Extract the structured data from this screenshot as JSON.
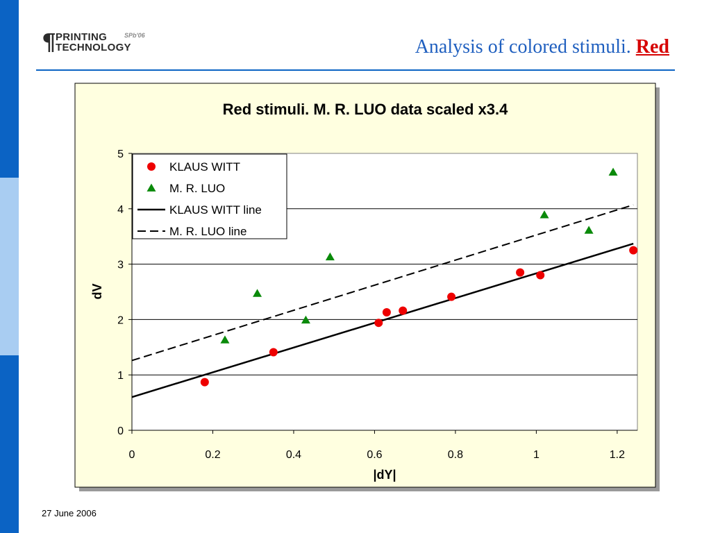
{
  "header": {
    "logo": {
      "line1": "PRINTING",
      "line2": "TECHNOLOGY",
      "tag": "SPb'06"
    },
    "title_main": "Analysis of colored stimuli.",
    "title_highlight": "Red"
  },
  "footer": {
    "date": "27 June 2006"
  },
  "colors": {
    "side_bar": "#0b63c4",
    "side_bar_light": "#a9cdf2",
    "title": "#1f5fbf",
    "title_highlight": "#d60000",
    "chart_bg": "#ffffe0",
    "klaus_witt": "#ee0000",
    "luo": "#0a8a0a"
  },
  "chart_data": {
    "type": "scatter",
    "title": "Red stimuli. M. R. LUO data scaled x3.4",
    "xlabel": "|dY|",
    "ylabel": "dV",
    "xlim": [
      0,
      1.25
    ],
    "ylim": [
      0,
      5
    ],
    "xticks": [
      0,
      0.2,
      0.4,
      0.6,
      0.8,
      1,
      1.2
    ],
    "xtick_labels": [
      "0",
      "0.2",
      "0.4",
      "0.6",
      "0.8",
      "1",
      "1.2"
    ],
    "yticks": [
      0,
      1,
      2,
      3,
      4,
      5
    ],
    "ytick_labels": [
      "0",
      "1",
      "2",
      "3",
      "4",
      "5"
    ],
    "grid": "horizontal",
    "legend_position": "top-left",
    "series": [
      {
        "name": "KLAUS WITT",
        "marker": "circle",
        "color": "#ee0000",
        "x": [
          0.18,
          0.35,
          0.61,
          0.63,
          0.67,
          0.79,
          0.96,
          1.01,
          1.24
        ],
        "y": [
          0.87,
          1.41,
          1.94,
          2.13,
          2.16,
          2.41,
          2.85,
          2.8,
          3.25
        ]
      },
      {
        "name": "M. R. LUO",
        "marker": "triangle",
        "color": "#0a8a0a",
        "x": [
          0.23,
          0.31,
          0.43,
          0.49,
          1.02,
          1.13,
          1.19
        ],
        "y": [
          1.63,
          2.47,
          1.99,
          3.13,
          3.89,
          3.61,
          4.66
        ]
      },
      {
        "name": "KLAUS WITT line",
        "kind": "line",
        "style": "solid",
        "color": "#000000",
        "x": [
          0,
          1.24
        ],
        "y": [
          0.6,
          3.37
        ]
      },
      {
        "name": "M. R. LUO line",
        "kind": "line",
        "style": "dashed",
        "color": "#000000",
        "x": [
          0,
          1.24
        ],
        "y": [
          1.26,
          4.07
        ]
      }
    ]
  }
}
